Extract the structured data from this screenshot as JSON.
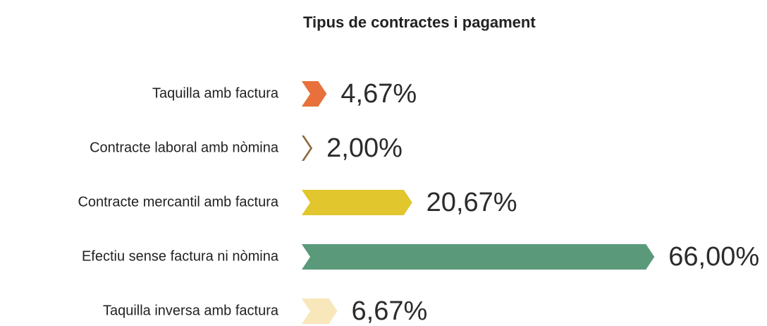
{
  "chart_data": {
    "type": "bar",
    "orientation": "horizontal",
    "title": "Tipus de contractes i pagament",
    "categories": [
      "Taquilla amb factura",
      "Contracte laboral amb nòmina",
      "Contracte mercantil amb factura",
      "Efectiu sense factura ni nòmina",
      "Taquilla inversa amb factura"
    ],
    "values": [
      4.67,
      2.0,
      20.67,
      66.0,
      6.67
    ],
    "value_labels": [
      "4,67%",
      "2,00%",
      "20,67%",
      "66,00%",
      "6,67%"
    ],
    "colors": [
      "#e8703a",
      "#8c6a3e",
      "#e1c62d",
      "#5a9a7b",
      "#f8e7bb"
    ]
  }
}
